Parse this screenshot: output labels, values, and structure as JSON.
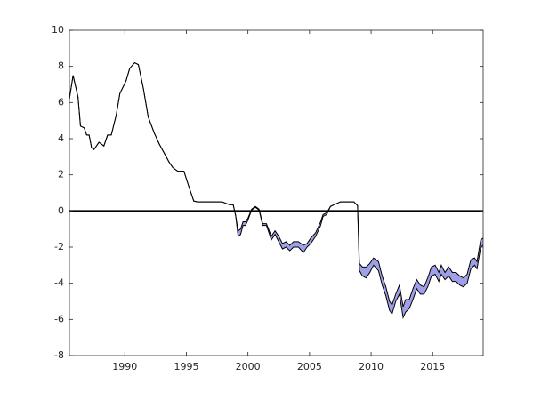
{
  "chart_data": {
    "type": "band",
    "x": [
      1985.5,
      1985.8,
      1986.2,
      1986.4,
      1986.7,
      1986.9,
      1987.1,
      1987.3,
      1987.5,
      1987.9,
      1988.3,
      1988.6,
      1988.9,
      1989.3,
      1989.6,
      1990.1,
      1990.4,
      1990.8,
      1991.1,
      1991.5,
      1991.9,
      1992.4,
      1992.8,
      1993.2,
      1993.6,
      1993.9,
      1994.3,
      1994.6,
      1994.8,
      1995.2,
      1995.6,
      1995.9,
      1997.2,
      1997.9,
      1998.5,
      1998.8,
      1999.0,
      1999.2,
      1999.4,
      1999.6,
      1999.8,
      2000.0,
      2000.3,
      2000.6,
      2000.9,
      2001.2,
      2001.5,
      2001.9,
      2002.2,
      2002.5,
      2002.8,
      2003.1,
      2003.4,
      2003.7,
      2004.1,
      2004.5,
      2004.8,
      2005.1,
      2005.5,
      2005.9,
      2006.1,
      2006.4,
      2006.7,
      2007.0,
      2007.5,
      2008.6,
      2008.9,
      2009.05,
      2009.3,
      2009.6,
      2009.9,
      2010.2,
      2010.6,
      2010.9,
      2011.2,
      2011.5,
      2011.7,
      2012.0,
      2012.3,
      2012.6,
      2012.8,
      2013.1,
      2013.4,
      2013.7,
      2014.0,
      2014.3,
      2014.6,
      2014.9,
      2015.2,
      2015.5,
      2015.7,
      2016.0,
      2016.3,
      2016.6,
      2016.9,
      2017.2,
      2017.5,
      2017.8,
      2018.1,
      2018.4,
      2018.6,
      2018.9,
      2019.1
    ],
    "series": [
      {
        "color": "#000000",
        "values": [
          6.2,
          7.5,
          6.3,
          4.7,
          4.6,
          4.2,
          4.2,
          3.5,
          3.4,
          3.8,
          3.6,
          4.2,
          4.2,
          5.3,
          6.5,
          7.2,
          7.9,
          8.2,
          8.1,
          6.8,
          5.2,
          4.3,
          3.7,
          3.2,
          2.7,
          2.4,
          2.2,
          2.2,
          2.2,
          1.35,
          0.55,
          0.5,
          0.5,
          0.5,
          0.35,
          0.35,
          -0.25,
          -1.1,
          -1.0,
          -0.6,
          -0.6,
          -0.4,
          0.1,
          0.25,
          0.1,
          -0.7,
          -0.7,
          -1.4,
          -1.1,
          -1.4,
          -1.8,
          -1.7,
          -1.9,
          -1.7,
          -1.7,
          -1.9,
          -1.8,
          -1.5,
          -1.2,
          -0.6,
          -0.2,
          -0.1,
          0.25,
          0.35,
          0.5,
          0.5,
          0.3,
          -2.9,
          -3.1,
          -3.1,
          -2.9,
          -2.6,
          -2.8,
          -3.6,
          -4.2,
          -5.0,
          -5.2,
          -4.6,
          -4.1,
          -5.3,
          -4.9,
          -4.9,
          -4.3,
          -3.8,
          -4.1,
          -4.2,
          -3.7,
          -3.1,
          -3.0,
          -3.4,
          -3.0,
          -3.4,
          -3.1,
          -3.4,
          -3.4,
          -3.6,
          -3.7,
          -3.5,
          -2.7,
          -2.6,
          -2.8,
          -1.6,
          -1.5
        ]
      },
      {
        "color": "#000000",
        "values": [
          6.2,
          7.5,
          6.3,
          4.7,
          4.6,
          4.2,
          4.2,
          3.5,
          3.4,
          3.8,
          3.6,
          4.2,
          4.2,
          5.3,
          6.5,
          7.2,
          7.9,
          8.2,
          8.1,
          6.8,
          5.2,
          4.3,
          3.7,
          3.2,
          2.7,
          2.4,
          2.2,
          2.2,
          2.2,
          1.35,
          0.55,
          0.5,
          0.5,
          0.5,
          0.35,
          0.35,
          -0.25,
          -1.4,
          -1.3,
          -0.8,
          -0.8,
          -0.5,
          0.05,
          0.2,
          0.05,
          -0.8,
          -0.8,
          -1.6,
          -1.3,
          -1.7,
          -2.1,
          -2.0,
          -2.2,
          -2.0,
          -2.0,
          -2.3,
          -2.0,
          -1.8,
          -1.4,
          -0.8,
          -0.3,
          -0.2,
          0.25,
          0.35,
          0.5,
          0.5,
          0.3,
          -3.3,
          -3.6,
          -3.7,
          -3.4,
          -3.0,
          -3.3,
          -4.1,
          -4.7,
          -5.5,
          -5.7,
          -5.0,
          -4.6,
          -5.9,
          -5.6,
          -5.4,
          -4.9,
          -4.3,
          -4.6,
          -4.6,
          -4.2,
          -3.6,
          -3.5,
          -3.9,
          -3.5,
          -3.8,
          -3.6,
          -3.9,
          -3.9,
          -4.1,
          -4.2,
          -4.0,
          -3.2,
          -3.0,
          -3.2,
          -2.0,
          -1.9
        ]
      }
    ],
    "band_color": "#a0a0e8",
    "reference_line": 0,
    "xlim": [
      1985.5,
      2019.1
    ],
    "ylim": [
      -8,
      10
    ],
    "xticks": [
      1990,
      1995,
      2000,
      2005,
      2010,
      2015
    ],
    "yticks": [
      -8,
      -6,
      -4,
      -2,
      0,
      2,
      4,
      6,
      8,
      10
    ]
  }
}
